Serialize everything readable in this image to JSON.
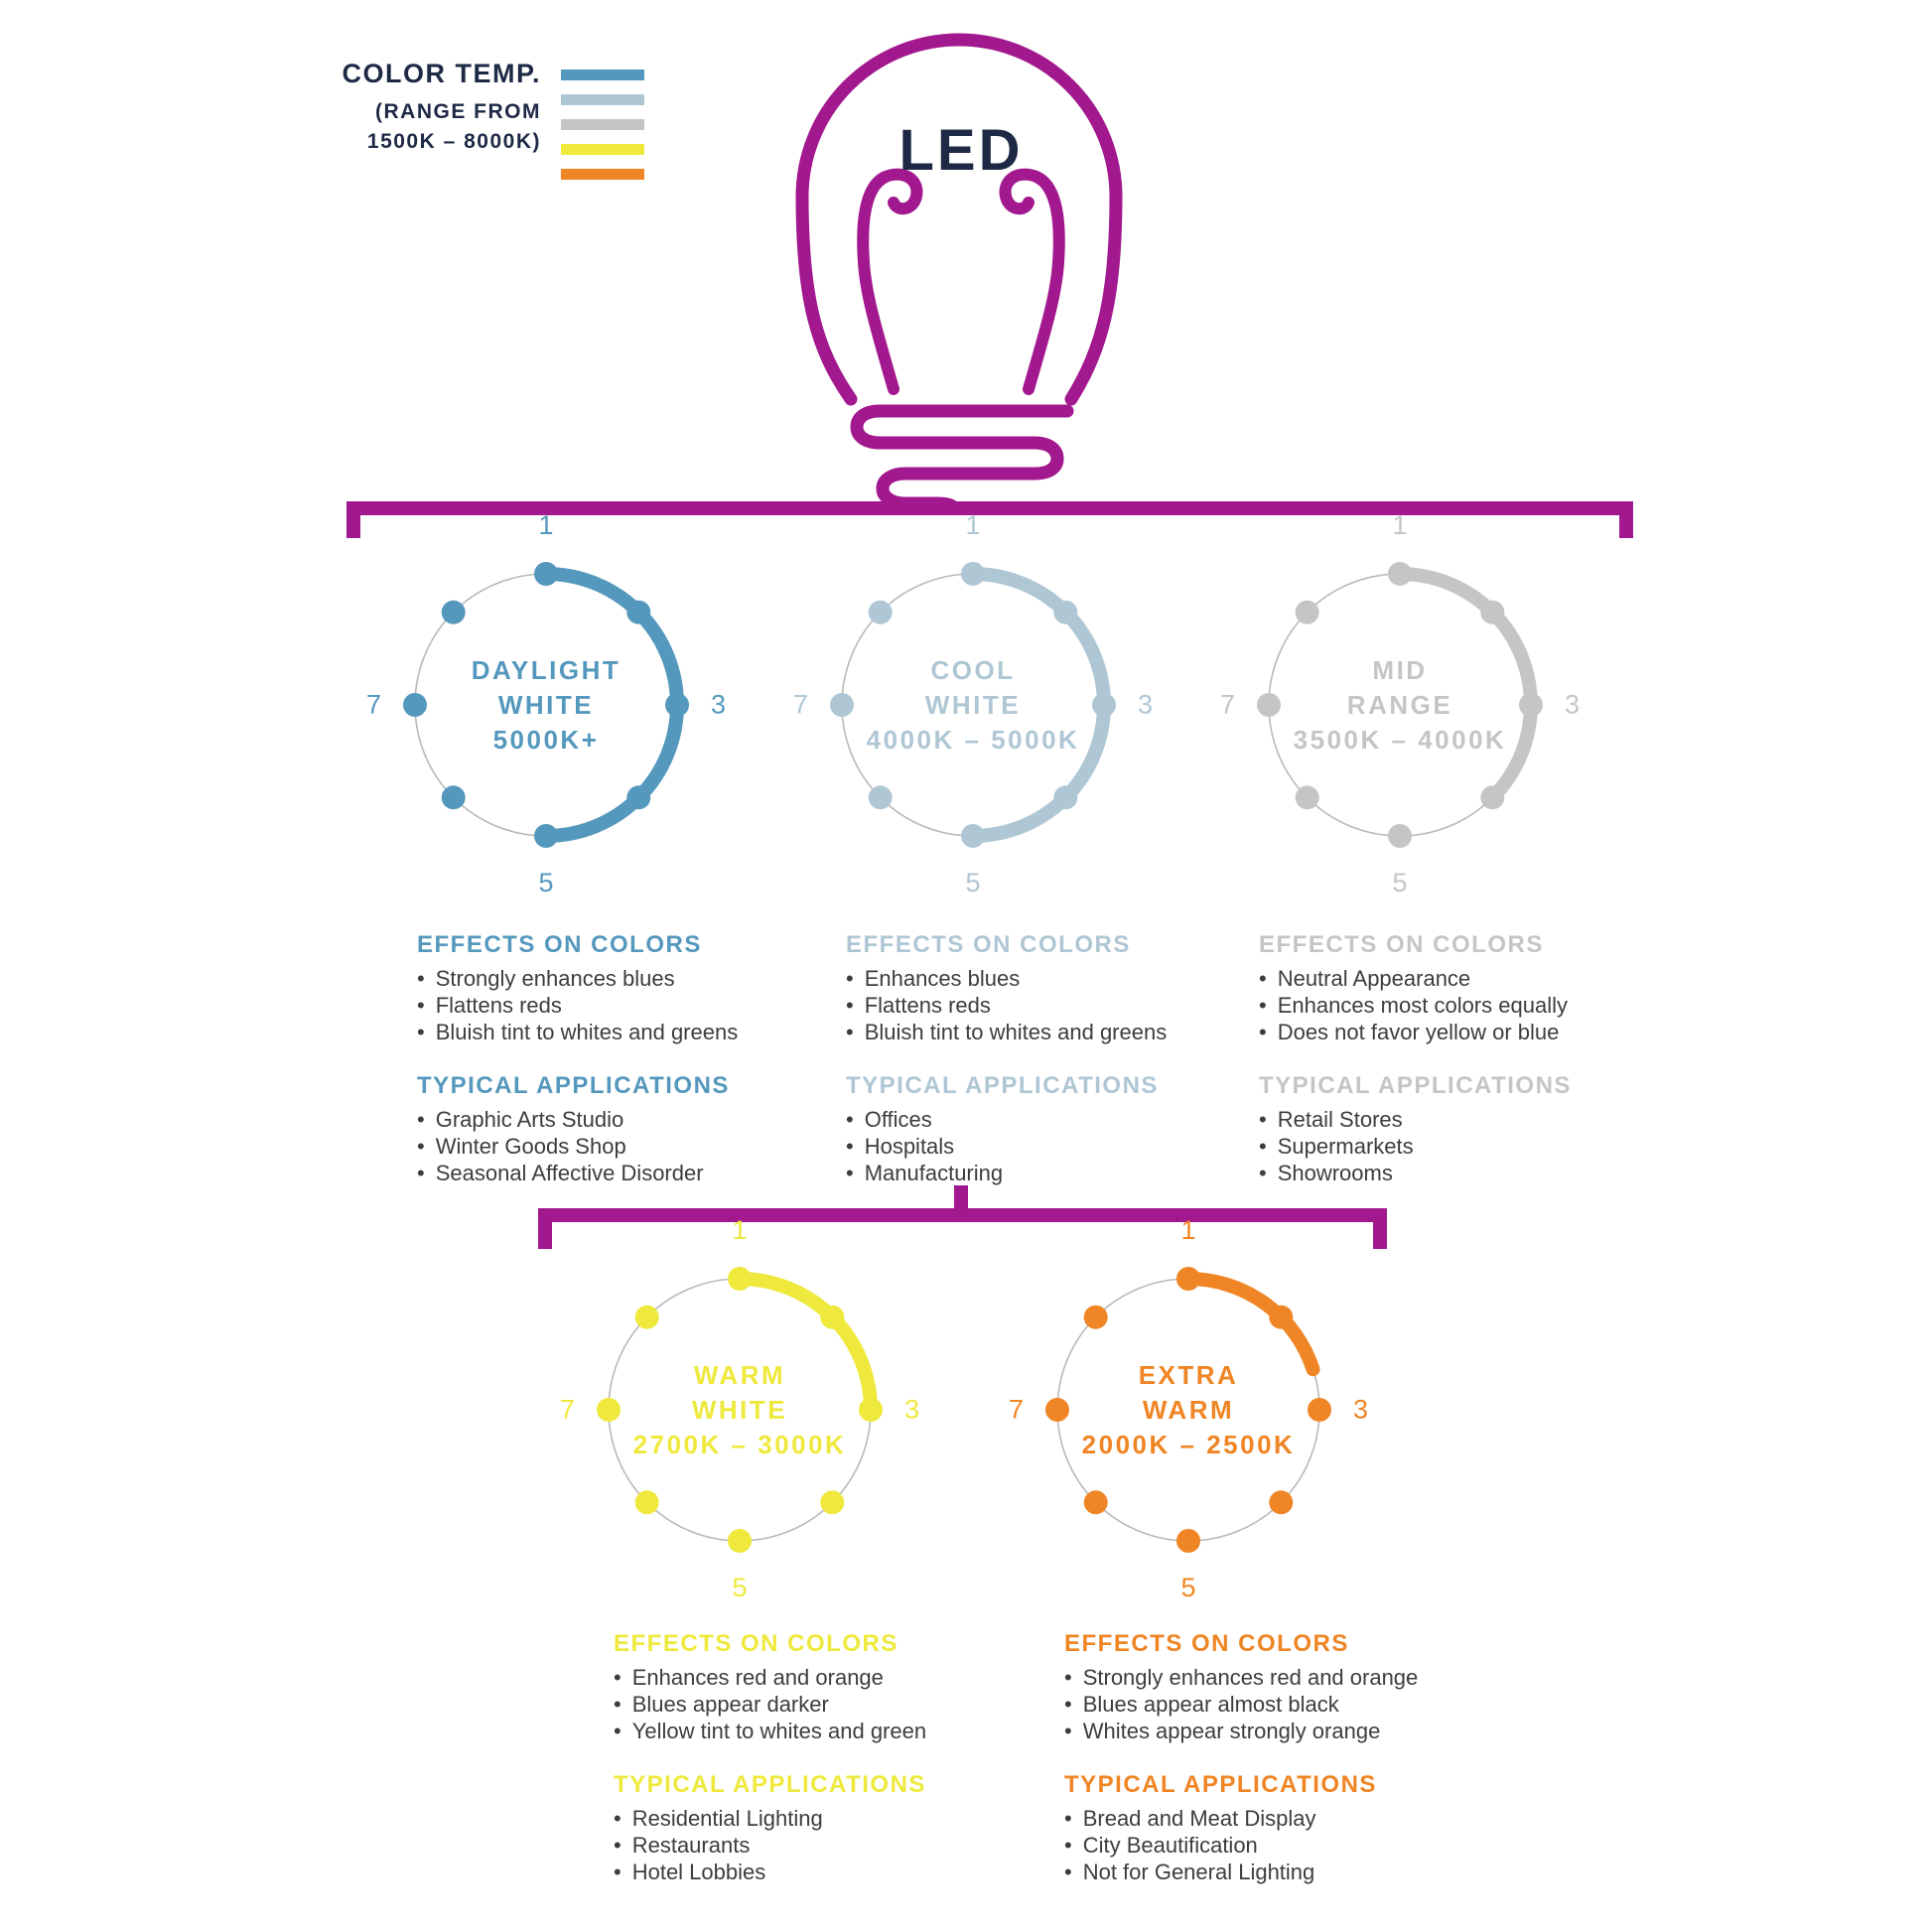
{
  "colors": {
    "magenta": "#A2188E",
    "navy": "#1E2946",
    "body_text": "#3D3D40",
    "ring_outline": "#B9B9B9"
  },
  "legend": {
    "title": "COLOR TEMP.",
    "subtitle_line1": "(RANGE FROM",
    "subtitle_line2": "1500K – 8000K)",
    "bar_colors": [
      "#5598BD",
      "#AFC6D4",
      "#C6C4C4",
      "#EEE93C",
      "#EF8524"
    ]
  },
  "bulb": {
    "label": "LED"
  },
  "scale_numbers": [
    "1",
    "3",
    "5",
    "7"
  ],
  "groups": [
    {
      "id": "daylight-white",
      "name_lines": [
        "DAYLIGHT",
        "WHITE",
        "5000K+"
      ],
      "color": "#5598BD",
      "arc_degrees": 180,
      "effects_title": "EFFECTS ON COLORS",
      "effects": [
        "Strongly enhances blues",
        "Flattens reds",
        "Bluish tint to whites and greens"
      ],
      "applications_title": "TYPICAL APPLICATIONS",
      "applications": [
        "Graphic Arts Studio",
        "Winter Goods Shop",
        "Seasonal Affective Disorder"
      ]
    },
    {
      "id": "cool-white",
      "name_lines": [
        "COOL",
        "WHITE",
        "4000K – 5000K"
      ],
      "color": "#AFC6D4",
      "arc_degrees": 180,
      "effects_title": "EFFECTS ON COLORS",
      "effects": [
        "Enhances blues",
        "Flattens reds",
        "Bluish tint to whites and greens"
      ],
      "applications_title": "TYPICAL APPLICATIONS",
      "applications": [
        "Offices",
        "Hospitals",
        "Manufacturing"
      ]
    },
    {
      "id": "mid-range",
      "name_lines": [
        "MID",
        "RANGE",
        "3500K – 4000K"
      ],
      "color": "#C6C4C4",
      "arc_degrees": 135,
      "effects_title": "EFFECTS ON COLORS",
      "effects": [
        "Neutral Appearance",
        "Enhances most colors equally",
        "Does not favor yellow or blue"
      ],
      "applications_title": "TYPICAL APPLICATIONS",
      "applications": [
        "Retail Stores",
        "Supermarkets",
        "Showrooms"
      ]
    },
    {
      "id": "warm-white",
      "name_lines": [
        "WARM",
        "WHITE",
        "2700K – 3000K"
      ],
      "color": "#EEE93C",
      "arc_degrees": 90,
      "effects_title": "EFFECTS ON COLORS",
      "effects": [
        "Enhances red and orange",
        "Blues appear darker",
        "Yellow tint to whites and green"
      ],
      "applications_title": "TYPICAL APPLICATIONS",
      "applications": [
        "Residential Lighting",
        "Restaurants",
        "Hotel Lobbies"
      ]
    },
    {
      "id": "extra-warm",
      "name_lines": [
        "EXTRA",
        "WARM",
        "2000K – 2500K"
      ],
      "color": "#EF8524",
      "arc_degrees": 72,
      "effects_title": "EFFECTS ON COLORS",
      "effects": [
        "Strongly enhances red and orange",
        "Blues appear almost black",
        "Whites appear strongly orange"
      ],
      "applications_title": "TYPICAL APPLICATIONS",
      "applications": [
        "Bread and Meat Display",
        "City Beautification",
        "Not for General Lighting"
      ]
    }
  ]
}
